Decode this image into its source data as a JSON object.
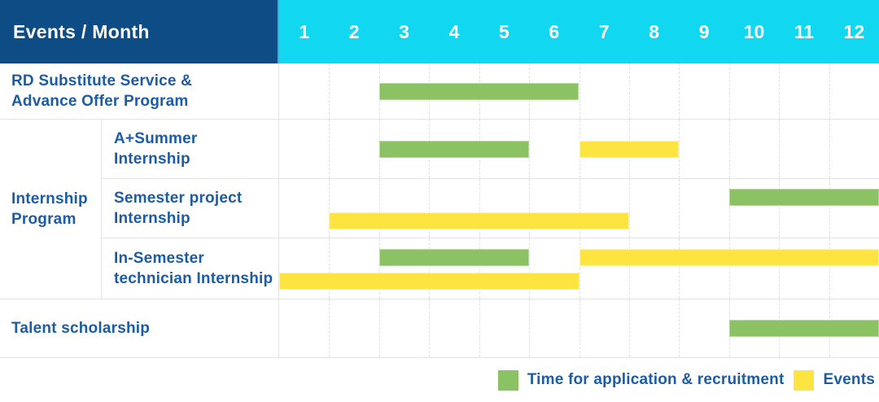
{
  "header": {
    "title": "Events / Month",
    "months": [
      "1",
      "2",
      "3",
      "4",
      "5",
      "6",
      "7",
      "8",
      "9",
      "10",
      "11",
      "12"
    ]
  },
  "colors": {
    "header_bg": "#0D4C84",
    "months_bg": "#12D7F0",
    "label_text": "#1C5CA5",
    "application": "#8AC264",
    "application_border": "#B5D99B",
    "events": "#FEE440",
    "events_border": "#FFF3A6",
    "grid_line": "#E3E3E3"
  },
  "legend": {
    "items": [
      {
        "series": "application",
        "label": "Time for application & recruitment"
      },
      {
        "series": "events",
        "label": "Events"
      }
    ]
  },
  "chart_data": {
    "type": "bar",
    "variant": "gantt",
    "title": "Events / Month",
    "x_axis": {
      "label": "Month",
      "ticks": [
        1,
        2,
        3,
        4,
        5,
        6,
        7,
        8,
        9,
        10,
        11,
        12
      ],
      "range": [
        1,
        12
      ]
    },
    "series_names": {
      "application": "Time for application & recruitment",
      "events": "Events"
    },
    "rows": [
      {
        "group": "",
        "label": "RD Substitute Service & Advance Offer Program",
        "label_lines": [
          "RD Substitute Service &",
          "Advance Offer Program"
        ],
        "bars": [
          {
            "series": "application",
            "start_month": 3,
            "end_month": 6,
            "lane": "center"
          }
        ]
      },
      {
        "group": "Internship Program",
        "label": "A+Summer Internship",
        "label_lines": [
          "A+Summer",
          "Internship"
        ],
        "bars": [
          {
            "series": "application",
            "start_month": 3,
            "end_month": 5,
            "lane": "center"
          },
          {
            "series": "events",
            "start_month": 7,
            "end_month": 8,
            "lane": "center"
          }
        ]
      },
      {
        "group": "Internship Program",
        "label": "Semester project Internship",
        "label_lines": [
          "Semester project",
          "Internship"
        ],
        "bars": [
          {
            "series": "application",
            "start_month": 10,
            "end_month": 12,
            "lane": "top"
          },
          {
            "series": "events",
            "start_month": 2,
            "end_month": 7,
            "lane": "bottom"
          }
        ]
      },
      {
        "group": "Internship Program",
        "label": "In-Semester technician Internship",
        "label_lines": [
          "In-Semester",
          "technician Internship"
        ],
        "bars": [
          {
            "series": "application",
            "start_month": 3,
            "end_month": 5,
            "lane": "top"
          },
          {
            "series": "events",
            "start_month": 7,
            "end_month": 12,
            "lane": "top"
          },
          {
            "series": "events",
            "start_month": 1,
            "end_month": 6,
            "lane": "bottom"
          }
        ]
      },
      {
        "group": "",
        "label": "Talent scholarship",
        "label_lines": [
          "Talent scholarship"
        ],
        "bars": [
          {
            "series": "application",
            "start_month": 10,
            "end_month": 12,
            "lane": "center"
          }
        ]
      }
    ],
    "group_label_lines": [
      "Internship",
      "Program"
    ]
  }
}
